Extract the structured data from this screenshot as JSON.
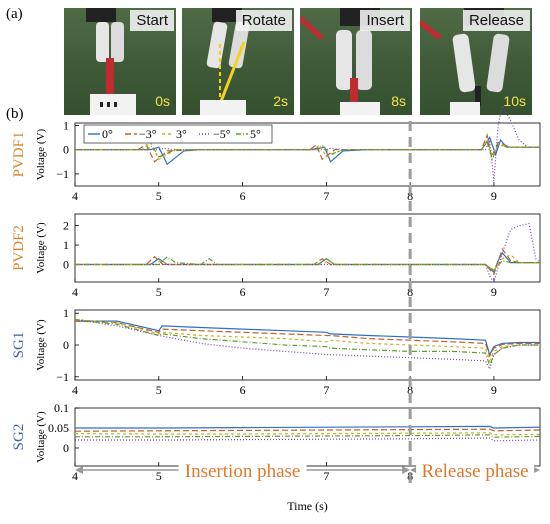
{
  "panel_a_label": "(a)",
  "panel_b_label": "(b)",
  "photos": [
    {
      "stage": "Start",
      "time": "0s"
    },
    {
      "stage": "Rotate",
      "time": "2s"
    },
    {
      "stage": "Insert",
      "time": "8s"
    },
    {
      "stage": "Release",
      "time": "10s"
    }
  ],
  "colors": {
    "s0": "#2e6fc7",
    "sm3": "#c0612a",
    "s3": "#c9b02a",
    "sm5": "#7a3fb6",
    "s5": "#5f9e2a",
    "pvdf_label": "#d5852b",
    "sg_label": "#3c63a8",
    "phase_arrow": "#999999",
    "divider": "#9c9c9c"
  },
  "chart_data": {
    "type": "line",
    "xlabel": "Time (s)",
    "xlim": [
      4,
      9.55
    ],
    "x_ticks": [
      4,
      5,
      6,
      7,
      8,
      9
    ],
    "legend": [
      "0°",
      "−3°",
      "3°",
      "−5°",
      "5°"
    ],
    "phases": [
      {
        "label": "Insertion phase",
        "from": 4,
        "to": 8
      },
      {
        "label": "Release phase",
        "from": 8,
        "to": 9.55
      }
    ],
    "divider_x": 8,
    "subplots": [
      {
        "name": "PVDF1",
        "ylabel": "Voltage (V)",
        "ylim": [
          -1.5,
          1.1
        ],
        "y_ticks": [
          -1,
          0,
          1
        ],
        "series": [
          {
            "x": [
              4,
              4.9,
              5.0,
              5.1,
              5.3,
              5.5,
              5.9,
              6.8,
              6.98,
              7.05,
              7.2,
              7.5,
              8.0,
              8.85,
              8.95,
              9.02,
              9.08,
              9.15,
              9.25,
              9.55
            ],
            "y": [
              0,
              0,
              0.1,
              -0.6,
              -0.05,
              0,
              0,
              0,
              0.1,
              -0.5,
              -0.05,
              0,
              0,
              0,
              0.5,
              -0.2,
              0.4,
              0.1,
              0.1,
              0.1
            ]
          },
          {
            "x": [
              4,
              4.75,
              4.85,
              4.95,
              5.1,
              5.5,
              6.0,
              6.8,
              6.88,
              6.95,
              7.1,
              7.5,
              8.0,
              8.85,
              8.92,
              8.97,
              9.05,
              9.2,
              9.55
            ],
            "y": [
              0,
              0,
              0.2,
              -0.5,
              -0.05,
              0,
              0,
              0,
              0.2,
              -0.4,
              0,
              0,
              0,
              0,
              0.6,
              -0.3,
              0.3,
              0.1,
              0.1
            ]
          },
          {
            "x": [
              4,
              4.8,
              4.9,
              5.0,
              5.2,
              5.6,
              6.0,
              6.85,
              6.92,
              7.0,
              7.2,
              7.5,
              8.0,
              8.85,
              8.92,
              8.97,
              9.05,
              9.2,
              9.55
            ],
            "y": [
              0,
              0,
              0.3,
              -0.4,
              0,
              0,
              0,
              0,
              0.2,
              -0.3,
              0,
              0,
              0,
              0,
              0.4,
              -0.2,
              0.2,
              0.1,
              0.1
            ]
          },
          {
            "x": [
              4,
              5.0,
              5.05,
              5.2,
              6.0,
              7.0,
              7.05,
              7.2,
              8.0,
              8.9,
              8.95,
              9.0,
              9.05,
              9.1,
              9.2,
              9.3,
              9.4,
              9.55
            ],
            "y": [
              0,
              0,
              0.05,
              0,
              0,
              0,
              0.05,
              0,
              0,
              0,
              0.4,
              -1.3,
              1.0,
              1.8,
              1.2,
              0.4,
              0.1,
              0.1
            ]
          },
          {
            "x": [
              4,
              4.85,
              4.92,
              5.0,
              5.2,
              5.6,
              6.0,
              6.9,
              6.96,
              7.05,
              7.2,
              7.5,
              8.0,
              8.85,
              8.92,
              8.98,
              9.05,
              9.2,
              9.55
            ],
            "y": [
              0,
              0,
              0.15,
              -0.3,
              0,
              0,
              0,
              0,
              0.15,
              -0.2,
              0,
              0,
              0,
              0,
              0.3,
              -0.4,
              0.2,
              0.1,
              0.1
            ]
          }
        ]
      },
      {
        "name": "PVDF2",
        "ylabel": "Voltage (V)",
        "ylim": [
          -0.9,
          2.6
        ],
        "y_ticks": [
          0,
          1,
          2
        ],
        "series": [
          {
            "x": [
              4,
              4.9,
              5.0,
              5.1,
              5.2,
              6.0,
              6.9,
              7.0,
              7.1,
              7.2,
              8.0,
              8.9,
              9.0,
              9.05,
              9.1,
              9.2,
              9.3,
              9.55
            ],
            "y": [
              0,
              0,
              0.3,
              0,
              0,
              0,
              0,
              0.3,
              0,
              0,
              0,
              0,
              -0.4,
              0.2,
              0.6,
              0.1,
              0.1,
              0.1
            ]
          },
          {
            "x": [
              4,
              4.85,
              4.95,
              5.05,
              5.2,
              6.0,
              6.85,
              6.95,
              7.05,
              7.2,
              8.0,
              8.9,
              9.0,
              9.1,
              9.2,
              9.3,
              9.55
            ],
            "y": [
              0,
              0,
              0.4,
              0,
              0,
              0,
              0,
              0.3,
              0,
              0,
              0,
              0,
              -0.5,
              0.8,
              0.2,
              0.1,
              0.1
            ]
          },
          {
            "x": [
              4,
              4.95,
              5.02,
              5.12,
              5.2,
              6.0,
              6.95,
              7.02,
              7.12,
              7.2,
              8.0,
              8.9,
              9.0,
              9.1,
              9.2,
              9.3,
              9.55
            ],
            "y": [
              0,
              0,
              0.2,
              0,
              0,
              0,
              0,
              0.2,
              0,
              0,
              0,
              0,
              -0.3,
              0.3,
              0.5,
              0.1,
              0.1
            ]
          },
          {
            "x": [
              4,
              5.0,
              6.0,
              7.0,
              8.0,
              8.9,
              8.95,
              9.0,
              9.1,
              9.2,
              9.3,
              9.42,
              9.5,
              9.55
            ],
            "y": [
              0,
              0,
              0,
              0,
              0,
              0,
              -0.6,
              -0.9,
              0.6,
              1.8,
              2.0,
              2.1,
              0.3,
              0.1
            ]
          },
          {
            "x": [
              4,
              5.0,
              5.1,
              5.2,
              5.5,
              5.6,
              5.7,
              6.0,
              6.9,
              7.0,
              7.1,
              8.0,
              8.9,
              9.0,
              9.1,
              9.2,
              9.55
            ],
            "y": [
              0,
              0,
              0.4,
              0.1,
              0,
              0.3,
              0,
              0,
              0,
              0.3,
              0,
              0,
              0,
              -0.3,
              0.2,
              0.1,
              0.1
            ]
          }
        ]
      },
      {
        "name": "SG1",
        "ylabel": "Voltage (V)",
        "ylim": [
          -1.1,
          1.1
        ],
        "y_ticks": [
          -1,
          0,
          1
        ],
        "series": [
          {
            "x": [
              4,
              4.5,
              5.0,
              5.04,
              5.5,
              6.0,
              6.5,
              7.0,
              7.05,
              7.5,
              8.0,
              8.5,
              8.9,
              8.95,
              9.0,
              9.1,
              9.3,
              9.55
            ],
            "y": [
              0.75,
              0.75,
              0.45,
              0.6,
              0.55,
              0.5,
              0.45,
              0.4,
              0.35,
              0.3,
              0.25,
              0.2,
              0.15,
              -0.3,
              -0.05,
              0.05,
              0.08,
              0.08
            ]
          },
          {
            "x": [
              4,
              4.5,
              5.0,
              5.04,
              5.5,
              6.0,
              6.5,
              7.0,
              7.05,
              7.5,
              8.0,
              8.5,
              8.9,
              8.95,
              9.0,
              9.1,
              9.3,
              9.55
            ],
            "y": [
              0.75,
              0.7,
              0.4,
              0.5,
              0.45,
              0.4,
              0.35,
              0.3,
              0.3,
              0.2,
              0.15,
              0.1,
              0.05,
              -0.35,
              -0.1,
              0.02,
              0.05,
              0.05
            ]
          },
          {
            "x": [
              4,
              4.5,
              5.0,
              5.04,
              5.5,
              6.0,
              6.5,
              7.0,
              7.05,
              7.5,
              8.0,
              8.5,
              8.9,
              8.95,
              9.0,
              9.1,
              9.3,
              9.55
            ],
            "y": [
              0.8,
              0.7,
              0.35,
              0.4,
              0.3,
              0.25,
              0.2,
              0.1,
              0.15,
              0.05,
              0.0,
              -0.05,
              -0.1,
              -0.5,
              -0.2,
              -0.05,
              0.0,
              0.0
            ]
          },
          {
            "x": [
              4,
              4.5,
              5.0,
              5.5,
              6.0,
              6.5,
              7.0,
              7.5,
              8.0,
              8.5,
              8.9,
              8.95,
              9.0,
              9.1,
              9.3,
              9.55
            ],
            "y": [
              0.8,
              0.6,
              0.3,
              0.05,
              -0.1,
              -0.2,
              -0.3,
              -0.35,
              -0.4,
              -0.45,
              -0.5,
              -0.75,
              -0.3,
              -0.1,
              0.0,
              0.0
            ]
          },
          {
            "x": [
              4,
              4.5,
              5.0,
              5.04,
              5.5,
              6.0,
              6.5,
              7.0,
              7.05,
              7.5,
              8.0,
              8.5,
              8.9,
              8.95,
              9.0,
              9.1,
              9.3,
              9.55
            ],
            "y": [
              0.8,
              0.65,
              0.3,
              0.35,
              0.2,
              0.1,
              0.0,
              -0.05,
              -0.1,
              -0.15,
              -0.2,
              -0.2,
              -0.25,
              -0.65,
              -0.3,
              -0.1,
              0.0,
              0.0
            ]
          }
        ]
      },
      {
        "name": "SG2",
        "ylabel": "Voltage (V)",
        "ylim": [
          -0.045,
          0.1
        ],
        "y_ticks": [
          0,
          0.05,
          0.1
        ],
        "series": [
          {
            "x": [
              4,
              5.0,
              6.0,
              7.0,
              8.0,
              8.95,
              9.0,
              9.55
            ],
            "y": [
              0.05,
              0.05,
              0.051,
              0.052,
              0.053,
              0.054,
              0.05,
              0.052
            ]
          },
          {
            "x": [
              4,
              5.0,
              6.0,
              7.0,
              8.0,
              8.95,
              9.0,
              9.55
            ],
            "y": [
              0.042,
              0.043,
              0.044,
              0.045,
              0.046,
              0.047,
              0.043,
              0.045
            ]
          },
          {
            "x": [
              4,
              5.0,
              6.0,
              7.0,
              8.0,
              8.95,
              9.0,
              9.55
            ],
            "y": [
              0.036,
              0.035,
              0.035,
              0.036,
              0.037,
              0.038,
              0.033,
              0.034
            ]
          },
          {
            "x": [
              4,
              5.0,
              6.0,
              7.0,
              8.0,
              8.95,
              9.0,
              9.55
            ],
            "y": [
              0.02,
              0.02,
              0.021,
              0.022,
              0.023,
              0.025,
              0.018,
              0.02
            ]
          },
          {
            "x": [
              4,
              5.0,
              6.0,
              7.0,
              8.0,
              8.95,
              9.0,
              9.55
            ],
            "y": [
              0.028,
              0.028,
              0.029,
              0.03,
              0.031,
              0.033,
              0.027,
              0.029
            ]
          }
        ]
      }
    ]
  }
}
